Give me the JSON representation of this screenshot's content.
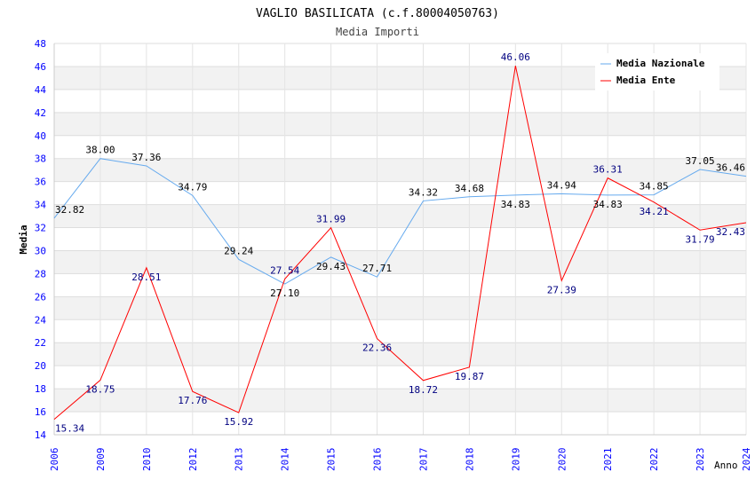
{
  "chart_data": {
    "type": "line",
    "title": "VAGLIO BASILICATA (c.f.80004050763)",
    "subtitle": "Media Importi",
    "xlabel": "Anno",
    "ylabel": "Media",
    "ylim": [
      14,
      48
    ],
    "yticks": [
      "14",
      "16",
      "18",
      "20",
      "22",
      "24",
      "26",
      "28",
      "30",
      "32",
      "34",
      "36",
      "38",
      "40",
      "42",
      "44",
      "46",
      "48"
    ],
    "categories": [
      "2006",
      "2009",
      "2010",
      "2012",
      "2013",
      "2014",
      "2015",
      "2016",
      "2017",
      "2018",
      "2019",
      "2020",
      "2021",
      "2022",
      "2023",
      "2024"
    ],
    "legend_position": "top-right",
    "series": [
      {
        "name": "Media Nazionale",
        "color": "#66aaee",
        "label_color": "#000000",
        "values": [
          32.82,
          38.0,
          37.36,
          34.79,
          29.24,
          27.1,
          29.43,
          27.71,
          34.32,
          34.68,
          34.83,
          34.94,
          34.83,
          34.85,
          37.05,
          36.46
        ],
        "labels": [
          "32.82",
          "38.00",
          "37.36",
          "34.79",
          "29.24",
          "27.10",
          "29.43",
          "27.71",
          "34.32",
          "34.68",
          "34.83",
          "34.94",
          "34.83",
          "34.85",
          "37.05",
          "36.46"
        ]
      },
      {
        "name": "Media Ente",
        "color": "#ff0000",
        "label_color": "#000080",
        "values": [
          15.34,
          18.75,
          28.51,
          17.76,
          15.92,
          27.54,
          31.99,
          22.36,
          18.72,
          19.87,
          46.06,
          27.39,
          36.31,
          34.21,
          31.79,
          32.43
        ],
        "labels": [
          "15.34",
          "18.75",
          "28.51",
          "17.76",
          "15.92",
          "27.54",
          "31.99",
          "22.36",
          "18.72",
          "19.87",
          "46.06",
          "27.39",
          "36.31",
          "34.21",
          "31.79",
          "32.43"
        ]
      }
    ]
  }
}
